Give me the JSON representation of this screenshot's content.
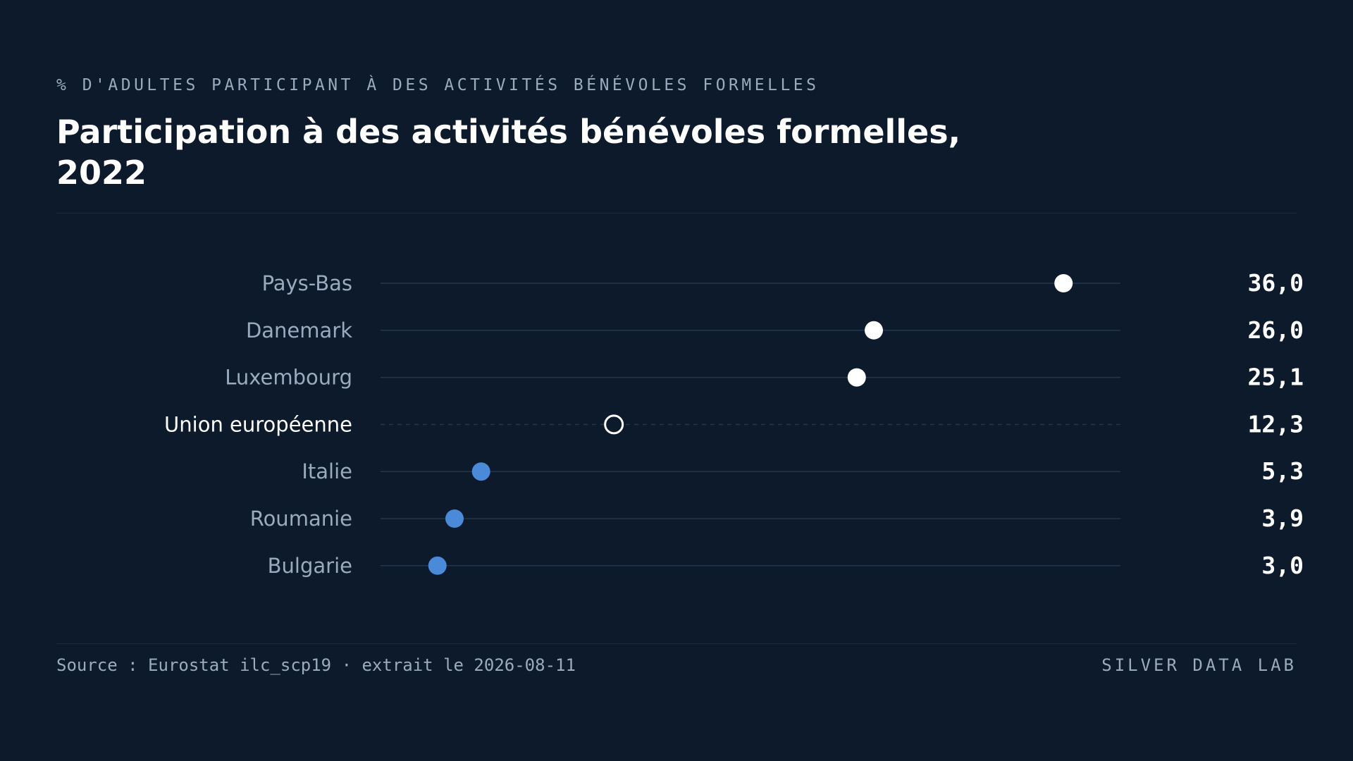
{
  "header": {
    "subtitle": "% D'ADULTES PARTICIPANT À DES ACTIVITÉS BÉNÉVOLES FORMELLES",
    "title": "Participation à des activités bénévoles formelles, 2022"
  },
  "footer": {
    "source": "Source : Eurostat ilc_scp19 · extrait le 2026-08-11",
    "brand": "SILVER DATA LAB"
  },
  "colors": {
    "background": "#0d1a2b",
    "top_marker": "#ffffff",
    "reference_marker_stroke": "#ffffff",
    "bottom_marker": "#4a8ad9",
    "row_line": "#24364d",
    "label_text": "#9aabc0",
    "reference_label_text": "#ffffff",
    "value_text": "#ffffff"
  },
  "chart_data": {
    "type": "dot",
    "title": "Participation à des activités bénévoles formelles, 2022",
    "subtitle": "% D'ADULTES PARTICIPANT À DES ACTIVITÉS BÉNÉVOLES FORMELLES",
    "xlim": [
      0,
      39
    ],
    "grid": false,
    "categories": [
      "Pays-Bas",
      "Danemark",
      "Luxembourg",
      "Union européenne",
      "Italie",
      "Roumanie",
      "Bulgarie"
    ],
    "values": [
      36.0,
      26.0,
      25.1,
      12.3,
      5.3,
      3.9,
      3.0
    ],
    "value_labels": [
      "36,0",
      "26,0",
      "25,1",
      "12,3",
      "5,3",
      "3,9",
      "3,0"
    ],
    "groups": [
      "top",
      "top",
      "top",
      "reference",
      "bottom",
      "bottom",
      "bottom"
    ]
  }
}
